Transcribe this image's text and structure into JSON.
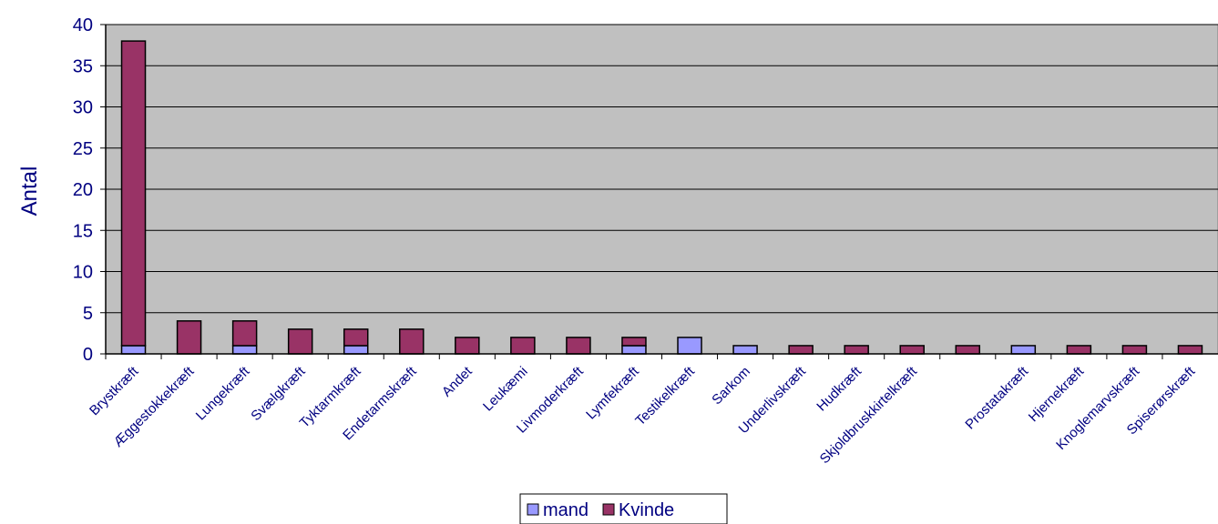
{
  "chart_data": {
    "type": "bar",
    "stacked": true,
    "title": "",
    "xlabel": "",
    "ylabel": "Antal",
    "ylim": [
      0,
      40
    ],
    "yticks": [
      0,
      5,
      10,
      15,
      20,
      25,
      30,
      35,
      40
    ],
    "grid": true,
    "legend_position": "bottom",
    "categories": [
      "Brystkræft",
      "Æggestokkekræft",
      "Lungekræft",
      "Svælgkræft",
      "Tyktarmkræft",
      "Endetarmskræft",
      "Andet",
      "Leukæmi",
      "Livmoderkræft",
      "Lymfekræft",
      "Testikelkræft",
      "Sarkom",
      "Underlivskræft",
      "Hudkræft",
      "Skjoldbruskkirtelkræft",
      "",
      "Prostatakræft",
      "Hjernekræft",
      "Knoglemarvskræft",
      "Spiserørskræft"
    ],
    "series": [
      {
        "name": "mand",
        "color": "#9999FF",
        "values": [
          1,
          0,
          1,
          0,
          1,
          0,
          0,
          0,
          0,
          1,
          2,
          1,
          0,
          0,
          0,
          0,
          1,
          0,
          0,
          0
        ]
      },
      {
        "name": "Kvinde",
        "color": "#993366",
        "values": [
          37,
          4,
          3,
          3,
          2,
          3,
          2,
          2,
          2,
          1,
          0,
          0,
          1,
          1,
          1,
          1,
          0,
          1,
          1,
          1
        ]
      }
    ],
    "plot_background": "#C0C0C0",
    "text_color": "#000080"
  }
}
